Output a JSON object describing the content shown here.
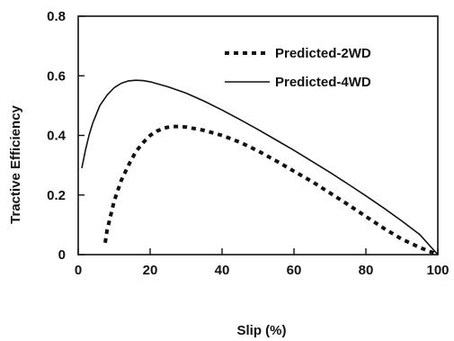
{
  "chart_data": {
    "type": "line",
    "xlabel": "Slip (%)",
    "ylabel": "Tractive Efficiency",
    "xlim": [
      0,
      100
    ],
    "ylim": [
      0,
      0.8
    ],
    "xticks": [
      "0",
      "20",
      "40",
      "60",
      "80",
      "100"
    ],
    "yticks": [
      "0",
      "0.2",
      "0.4",
      "0.6",
      "0.8"
    ],
    "grid": false,
    "legend_position": "top-right",
    "series": [
      {
        "name": "Predicted-2WD",
        "style": "dotted",
        "color": "#111111",
        "x": [
          7.5,
          8,
          9,
          10,
          12,
          14,
          16,
          18,
          20,
          22,
          24,
          26,
          28,
          30,
          35,
          40,
          45,
          50,
          55,
          60,
          65,
          70,
          75,
          80,
          85,
          90,
          95,
          100
        ],
        "y": [
          0.04,
          0.08,
          0.13,
          0.18,
          0.25,
          0.3,
          0.345,
          0.375,
          0.4,
          0.415,
          0.425,
          0.43,
          0.43,
          0.428,
          0.417,
          0.4,
          0.377,
          0.348,
          0.315,
          0.28,
          0.245,
          0.207,
          0.168,
          0.128,
          0.088,
          0.052,
          0.024,
          0.0
        ]
      },
      {
        "name": "Predicted-4WD",
        "style": "solid",
        "color": "#111111",
        "x": [
          1,
          2,
          3,
          4,
          5,
          6,
          8,
          10,
          12,
          14,
          16,
          18,
          20,
          25,
          30,
          35,
          40,
          45,
          50,
          55,
          60,
          65,
          70,
          75,
          80,
          85,
          90,
          95,
          100
        ],
        "y": [
          0.29,
          0.35,
          0.4,
          0.44,
          0.47,
          0.5,
          0.535,
          0.56,
          0.575,
          0.583,
          0.585,
          0.584,
          0.58,
          0.563,
          0.542,
          0.515,
          0.485,
          0.453,
          0.42,
          0.385,
          0.35,
          0.313,
          0.276,
          0.237,
          0.197,
          0.156,
          0.113,
          0.067,
          0.0
        ]
      }
    ]
  }
}
